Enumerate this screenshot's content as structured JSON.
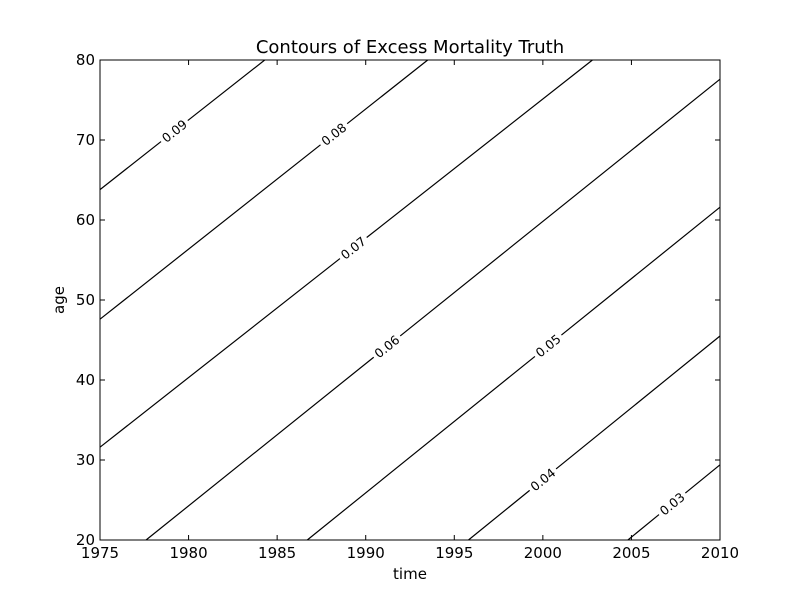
{
  "chart_data": {
    "type": "contour",
    "title": "Contours of Excess Mortality Truth",
    "xlabel": "time",
    "ylabel": "age",
    "xlim": [
      1975,
      2010
    ],
    "ylim": [
      20,
      80
    ],
    "xticks": [
      1975,
      1980,
      1985,
      1990,
      1995,
      2000,
      2005,
      2010
    ],
    "yticks": [
      20,
      30,
      40,
      50,
      60,
      70,
      80
    ],
    "grid": false,
    "line_color": "#000000",
    "contours": [
      {
        "level": "0.09",
        "label": "0.09",
        "points": [
          [
            1975,
            63.8
          ],
          [
            1984.3,
            80
          ]
        ],
        "label_at": 1979.2
      },
      {
        "level": "0.08",
        "label": "0.08",
        "points": [
          [
            1975,
            47.6
          ],
          [
            1993.5,
            80
          ]
        ],
        "label_at": 1988.2
      },
      {
        "level": "0.07",
        "label": "0.07",
        "points": [
          [
            1975,
            31.6
          ],
          [
            2002.8,
            80
          ]
        ],
        "label_at": 1989.3
      },
      {
        "level": "0.06",
        "label": "0.06",
        "points": [
          [
            1977.6,
            20
          ],
          [
            2010,
            77.6
          ]
        ],
        "label_at": 1991.2
      },
      {
        "level": "0.05",
        "label": "0.05",
        "points": [
          [
            1986.7,
            20
          ],
          [
            2010,
            61.6
          ]
        ],
        "label_at": 2000.3
      },
      {
        "level": "0.04",
        "label": "0.04",
        "points": [
          [
            1995.8,
            20
          ],
          [
            2010,
            45.5
          ]
        ],
        "label_at": 2000.0
      },
      {
        "level": "0.03",
        "label": "0.03",
        "points": [
          [
            2004.8,
            20
          ],
          [
            2010,
            29.4
          ]
        ],
        "label_at": 2007.3
      }
    ]
  }
}
